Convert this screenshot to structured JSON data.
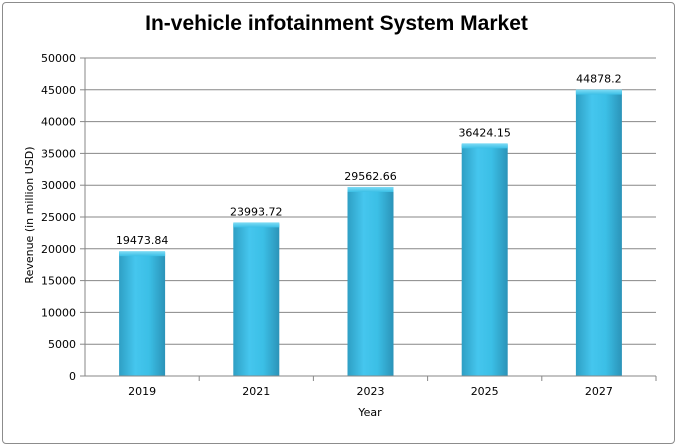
{
  "chart_data": {
    "type": "bar",
    "title": "In-vehicle infotainment System Market",
    "xlabel": "Year",
    "ylabel": "Revenue (in million USD)",
    "categories": [
      "2019",
      "2021",
      "2023",
      "2025",
      "2027"
    ],
    "values": [
      19473.84,
      23993.72,
      29562.66,
      36424.15,
      44878.2
    ],
    "value_labels": [
      "19473.84",
      "23993.72",
      "29562.66",
      "36424.15",
      "44878.2"
    ],
    "ylim": [
      0,
      50000
    ],
    "yticks": [
      "0",
      "5000",
      "10000",
      "15000",
      "20000",
      "25000",
      "30000",
      "35000",
      "40000",
      "45000",
      "50000"
    ],
    "grid": true,
    "legend": "none",
    "bar_color": "#3bbfe6"
  }
}
